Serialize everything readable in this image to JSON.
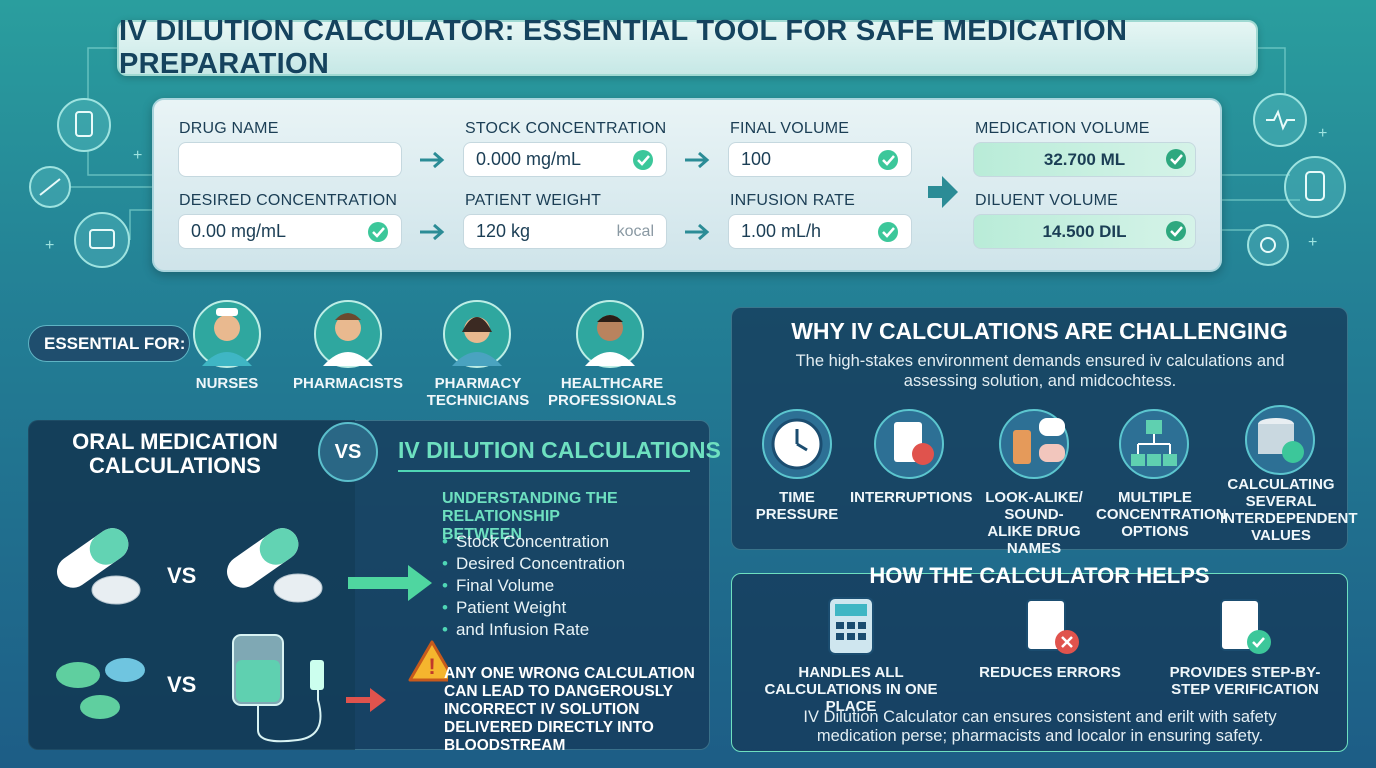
{
  "header": {
    "title": "IV DILUTION CALCULATOR: ESSENTIAL TOOL FOR SAFE MEDICATION PREPARATION"
  },
  "calculator": {
    "fields": [
      {
        "label": "DRUG NAME"
      },
      {
        "label": "DESIRED CONCENTRATION",
        "value": "0.00 mg/mL"
      },
      {
        "label": "STOCK CONCENTRATION",
        "value": "0.000 mg/mL"
      },
      {
        "label": "PATIENT WEIGHT",
        "value": "120 kg",
        "unit": "kocal"
      },
      {
        "label": "FINAL VOLUME",
        "value": "100"
      },
      {
        "label": "INFUSION RATE",
        "value": "1.00 mL/h"
      }
    ],
    "results": [
      {
        "label": "MEDICATION VOLUME",
        "value": "32.700 ML"
      },
      {
        "label": "DILUENT VOLUME",
        "value": "14.500 DIL"
      }
    ]
  },
  "essential": {
    "label": "ESSENTIAL FOR:",
    "roles": [
      "NURSES",
      "PHARMACISTS",
      "PHARMACY TECHNICIANS",
      "HEALTHCARE PROFESSIONALS"
    ]
  },
  "comparison": {
    "left_title": "ORAL MEDICATION CALCULATIONS",
    "vs": "VS",
    "right_title": "IV DILUTION CALCULATIONS",
    "row_vs": [
      "VS",
      "VS"
    ],
    "intro": "UNDERSTANDING THE RELATIONSHIP BETWEEN",
    "items": [
      "Stock Concentration",
      "Desired Concentration",
      "Final Volume",
      "Patient Weight",
      "and Infusion Rate"
    ],
    "warning": "ANY ONE WRONG CALCULATION CAN LEAD TO DANGEROUSLY INCORRECT IV SOLUTION DELIVERED DIRECTLY INTO BLOODSTREAM"
  },
  "challenges": {
    "title": "WHY IV CALCULATIONS ARE CHALLENGING",
    "description": "The high-stakes environment demands ensured iv calculations and assessing solution, and midcochtess.",
    "items": [
      "TIME PRESSURE",
      "INTERRUPTIONS",
      "LOOK-ALIKE/ SOUND-ALIKE DRUG NAMES",
      "MULTIPLE CONCENTRATION OPTIONS",
      "CALCULATING SEVERAL INTERDEPENDENT VALUES"
    ]
  },
  "helps": {
    "title": "HOW THE CALCULATOR HELPS",
    "items": [
      "HANDLES ALL CALCULATIONS IN ONE PLACE",
      "REDUCES ERRORS",
      "PROVIDES STEP-BY-STEP VERIFICATION"
    ],
    "footer": "IV Dilution Calculator can ensures consistent and erilt with safety medication perse; pharmacists and localor in ensuring safety."
  }
}
